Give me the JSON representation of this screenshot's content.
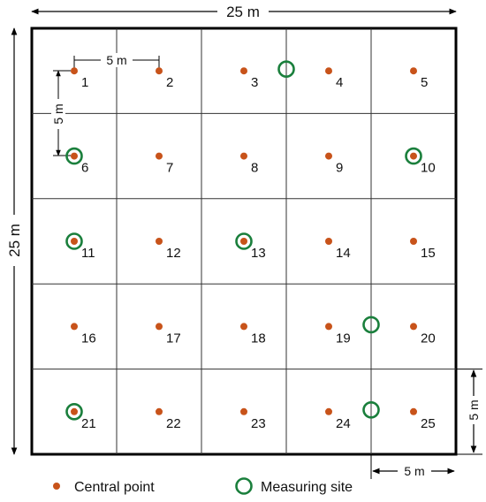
{
  "dimensions": {
    "top": "25 m",
    "left": "25 m",
    "spacing_horizontal": "5 m",
    "spacing_vertical": "5 m",
    "bottom_right": "5 m",
    "right": "5 m"
  },
  "grid": {
    "rows": 5,
    "cols": 5
  },
  "cells": [
    {
      "label": "1"
    },
    {
      "label": "2"
    },
    {
      "label": "3"
    },
    {
      "label": "4"
    },
    {
      "label": "5"
    },
    {
      "label": "6"
    },
    {
      "label": "7"
    },
    {
      "label": "8"
    },
    {
      "label": "9"
    },
    {
      "label": "10"
    },
    {
      "label": "11"
    },
    {
      "label": "12"
    },
    {
      "label": "13"
    },
    {
      "label": "14"
    },
    {
      "label": "15"
    },
    {
      "label": "16"
    },
    {
      "label": "17"
    },
    {
      "label": "18"
    },
    {
      "label": "19"
    },
    {
      "label": "20"
    },
    {
      "label": "21"
    },
    {
      "label": "22"
    },
    {
      "label": "23"
    },
    {
      "label": "24"
    },
    {
      "label": "25"
    }
  ],
  "measuring_sites_on_points": [
    "6",
    "10",
    "11",
    "13",
    "21"
  ],
  "measuring_sites_between": [
    {
      "between": [
        "3",
        "4"
      ]
    },
    {
      "between": [
        "19",
        "20"
      ]
    },
    {
      "between": [
        "24",
        "25"
      ]
    }
  ],
  "legend": {
    "central_point": "Central point",
    "measuring_site": "Measuring site"
  },
  "colors": {
    "central_point": "#c8531a",
    "measuring_site": "#1a7f3c",
    "line": "#000000"
  }
}
